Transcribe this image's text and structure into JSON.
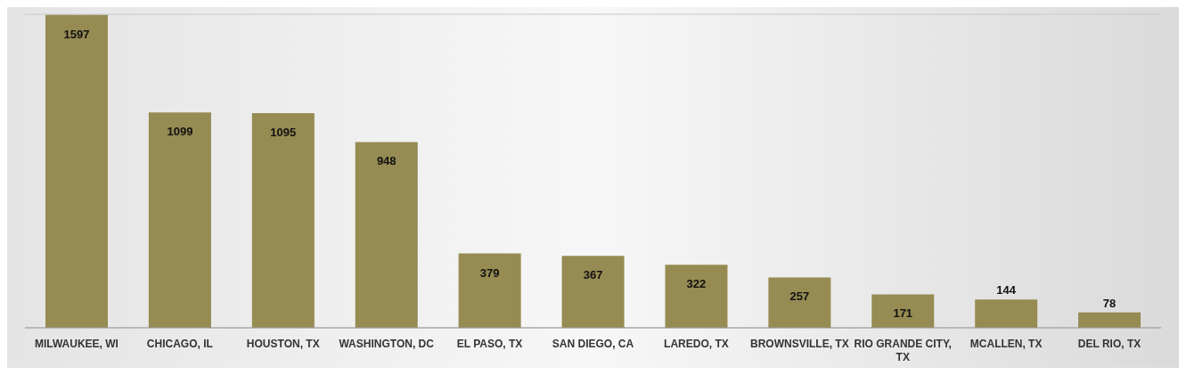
{
  "chart_data": {
    "type": "bar",
    "categories": [
      "MILWAUKEE, WI",
      "CHICAGO, IL",
      "HOUSTON, TX",
      "WASHINGTON, DC",
      "EL PASO, TX",
      "SAN DIEGO, CA",
      "LAREDO, TX",
      "BROWNSVILLE, TX",
      "RIO GRANDE CITY, TX",
      "MCALLEN,  TX",
      "DEL RIO, TX"
    ],
    "values": [
      1597,
      1099,
      1095,
      948,
      379,
      367,
      322,
      257,
      171,
      144,
      78
    ],
    "color": "#968b52",
    "grid": "y",
    "tick_labels": "x",
    "data_labels": true
  }
}
